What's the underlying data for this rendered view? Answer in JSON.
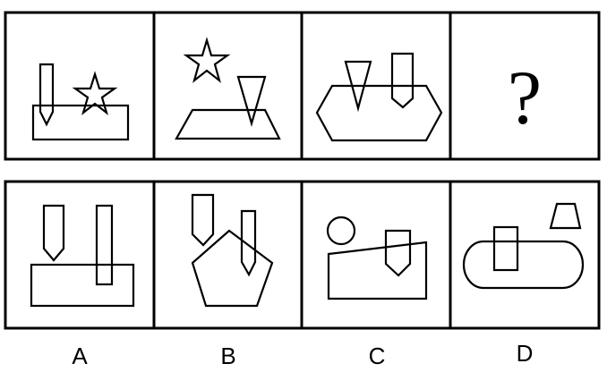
{
  "question_row": {
    "panels": [
      "panel-1",
      "panel-2",
      "panel-3"
    ],
    "unknown_symbol": "?"
  },
  "options": [
    {
      "label": "A"
    },
    {
      "label": "B"
    },
    {
      "label": "C"
    },
    {
      "label": "D"
    }
  ]
}
